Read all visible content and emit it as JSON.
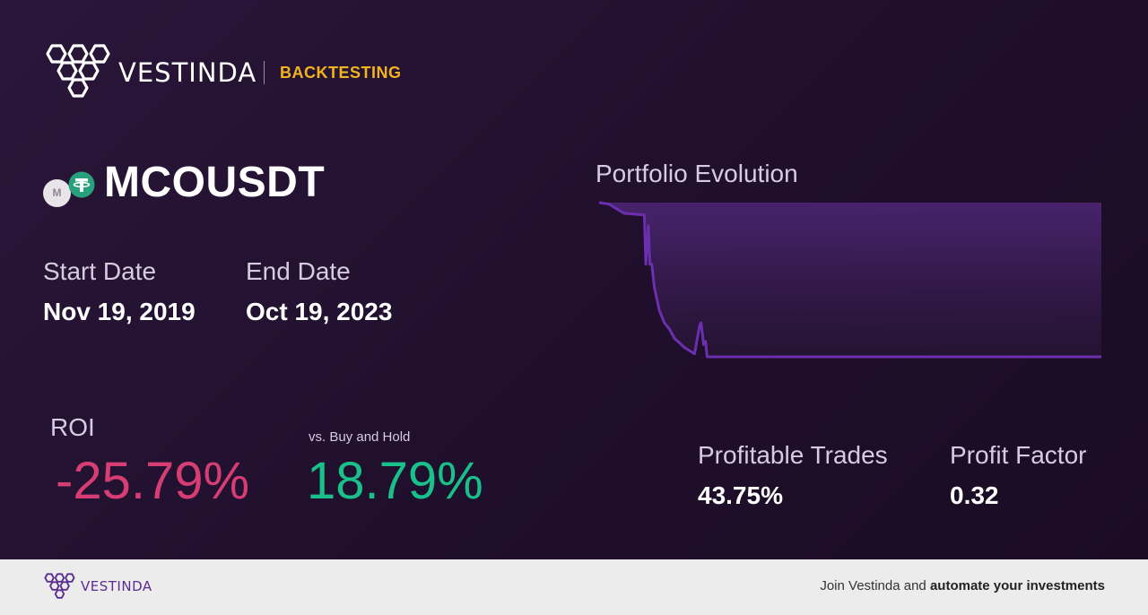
{
  "header": {
    "brand": "VESTINDA",
    "section": "BACKTESTING"
  },
  "symbol": {
    "name": "MCOUSDT",
    "base_icon": "mco-coin-icon",
    "base_icon_letter": "M",
    "quote_icon": "tether-usdt-icon"
  },
  "dates": {
    "start_label": "Start Date",
    "start_value": "Nov 19, 2019",
    "end_label": "End Date",
    "end_value": "Oct 19, 2023"
  },
  "roi": {
    "label": "ROI",
    "value": "-25.79%"
  },
  "buy_hold": {
    "label": "vs. Buy and Hold",
    "value": "18.79%"
  },
  "stats": {
    "profitable_trades_label": "Profitable Trades",
    "profitable_trades_value": "43.75%",
    "profit_factor_label": "Profit Factor",
    "profit_factor_value": "0.32"
  },
  "chart": {
    "title": "Portfolio Evolution"
  },
  "chart_data": {
    "type": "area",
    "title": "Portfolio Evolution",
    "xlabel": "",
    "ylabel": "",
    "grid": false,
    "x": [
      0,
      2,
      4,
      5,
      9,
      9.3,
      9.8,
      10.1,
      10.5,
      11,
      12,
      13,
      14,
      15,
      17,
      19,
      20,
      20.3,
      20.8,
      21.2,
      21.5,
      30,
      50,
      70,
      100
    ],
    "values": [
      1.0,
      0.99,
      0.95,
      0.93,
      0.92,
      0.6,
      0.85,
      0.6,
      0.6,
      0.45,
      0.3,
      0.22,
      0.18,
      0.12,
      0.06,
      0.02,
      0.2,
      0.22,
      0.08,
      0.1,
      0.0,
      0.0,
      0.0,
      0.0,
      0.0
    ],
    "colors": {
      "line": "#6b2fb0",
      "fill_top": "#4a2470",
      "fill_bottom": "#2a1639"
    }
  },
  "footer": {
    "brand": "VESTINDA",
    "cta_prefix": "Join Vestinda and ",
    "cta_bold": "automate your investments"
  },
  "colors": {
    "accent": "#f2b31d",
    "negative": "#d63d73",
    "positive": "#19c08a",
    "brand_purple": "#5a2d91"
  }
}
